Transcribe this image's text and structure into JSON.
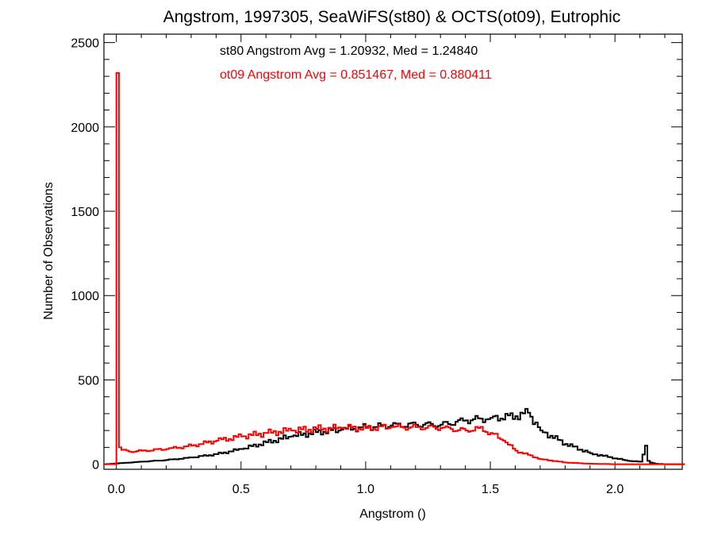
{
  "chart_data": {
    "type": "line",
    "title": "Angstrom, 1997305, SeaWiFS(st80) & OCTS(ot09), Eutrophic",
    "xlabel": "Angstrom ()",
    "ylabel": "Number of Observations",
    "xlim": [
      -0.05,
      2.27
    ],
    "ylim": [
      -30,
      2550
    ],
    "xticks": [
      {
        "value": 0.0,
        "label": "0.0"
      },
      {
        "value": 0.5,
        "label": "0.5"
      },
      {
        "value": 1.0,
        "label": "1.0"
      },
      {
        "value": 1.5,
        "label": "1.5"
      },
      {
        "value": 2.0,
        "label": "2.0"
      }
    ],
    "yticks": [
      {
        "value": 0,
        "label": "0"
      },
      {
        "value": 500,
        "label": "500"
      },
      {
        "value": 1000,
        "label": "1000"
      },
      {
        "value": 1500,
        "label": "1500"
      },
      {
        "value": 2000,
        "label": "2000"
      },
      {
        "value": 2500,
        "label": "2500"
      }
    ],
    "grid": false,
    "annotations": [
      {
        "text": "st80 Angstrom Avg = 1.20932, Med = 1.24840",
        "color": "#000000"
      },
      {
        "text": "ot09 Angstrom Avg = 0.851467, Med = 0.880411",
        "color": "#ff0000"
      }
    ],
    "series": [
      {
        "color": "#000000",
        "x": [
          -0.05,
          0.0,
          0.1,
          0.2,
          0.3,
          0.4,
          0.5,
          0.6,
          0.7,
          0.8,
          0.9,
          1.0,
          1.1,
          1.2,
          1.3,
          1.4,
          1.5,
          1.6,
          1.65,
          1.7,
          1.8,
          1.9,
          2.0,
          2.05,
          2.1,
          2.12,
          2.13,
          2.14,
          2.16,
          2.2,
          2.27
        ],
        "values": [
          0,
          5,
          15,
          25,
          40,
          60,
          90,
          130,
          165,
          190,
          205,
          220,
          230,
          235,
          235,
          260,
          275,
          285,
          305,
          200,
          120,
          65,
          35,
          20,
          15,
          110,
          20,
          10,
          3,
          0,
          0
        ]
      },
      {
        "color": "#ff0000",
        "x": [
          -0.05,
          -0.01,
          0.0,
          0.005,
          0.01,
          0.02,
          0.05,
          0.1,
          0.2,
          0.3,
          0.4,
          0.5,
          0.6,
          0.7,
          0.8,
          0.9,
          1.0,
          1.1,
          1.2,
          1.3,
          1.4,
          1.45,
          1.5,
          1.55,
          1.6,
          1.7,
          1.8,
          1.9,
          2.0,
          2.27
        ],
        "values": [
          0,
          0,
          2320,
          300,
          100,
          85,
          75,
          80,
          90,
          110,
          140,
          165,
          185,
          200,
          210,
          215,
          215,
          220,
          220,
          215,
          200,
          215,
          185,
          140,
          80,
          30,
          10,
          3,
          0,
          0
        ]
      }
    ]
  }
}
